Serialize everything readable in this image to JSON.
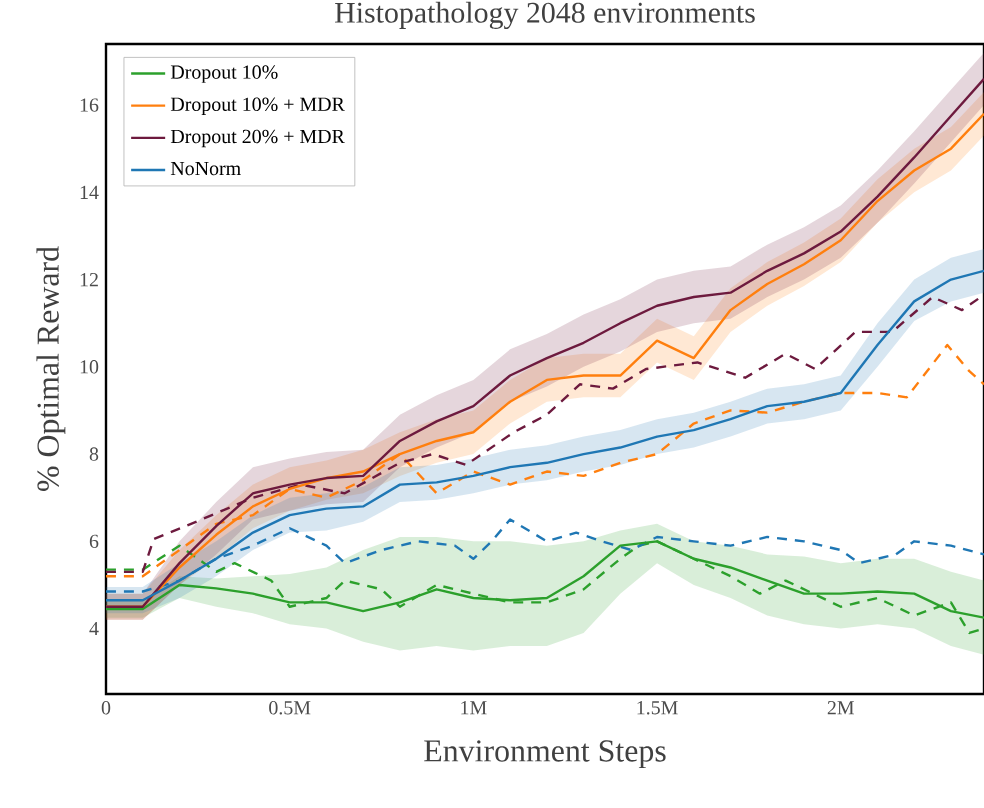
{
  "chart_data": {
    "type": "line",
    "title": "Histopathology 2048 environments",
    "xlabel": "Environment Steps",
    "ylabel": "% Optimal Reward",
    "xlim": [
      0,
      2.39
    ],
    "ylim": [
      2.5,
      17.4
    ],
    "xticks": [
      0,
      {
        "value": 0.5,
        "label": "0.5M"
      },
      {
        "value": 1,
        "label": "1M"
      },
      {
        "value": 1.5,
        "label": "1.5M"
      },
      {
        "value": 2,
        "label": "2M"
      }
    ],
    "yticks": [
      4,
      6,
      8,
      10,
      12,
      14,
      16
    ],
    "legend": "top left",
    "grid": false,
    "marker": "none",
    "x": [
      0,
      0.1,
      0.2,
      0.3,
      0.4,
      0.5,
      0.6,
      0.7,
      0.8,
      0.9,
      1.0,
      1.1,
      1.2,
      1.3,
      1.4,
      1.5,
      1.6,
      1.7,
      1.8,
      1.9,
      2.0,
      2.1,
      2.2,
      2.3,
      2.39
    ],
    "series": [
      {
        "name": "Dropout 10%",
        "color": "#2ca02c",
        "line_style": "solid",
        "values": [
          4.45,
          4.45,
          5.0,
          4.92,
          4.8,
          4.6,
          4.6,
          4.4,
          4.6,
          4.9,
          4.7,
          4.65,
          4.7,
          5.2,
          5.9,
          6.0,
          5.6,
          5.4,
          5.1,
          4.8,
          4.8,
          4.85,
          4.8,
          4.4,
          4.25
        ],
        "lower": [
          4.25,
          4.25,
          4.7,
          4.5,
          4.35,
          4.1,
          4.0,
          3.7,
          3.5,
          3.6,
          3.5,
          3.6,
          3.6,
          3.9,
          4.8,
          5.5,
          5.0,
          4.7,
          4.3,
          4.1,
          4.0,
          4.1,
          4.0,
          3.6,
          3.4
        ],
        "upper": [
          4.65,
          4.65,
          5.2,
          5.15,
          5.2,
          5.25,
          5.4,
          5.8,
          6.1,
          6.1,
          6.0,
          6.0,
          5.9,
          6.0,
          6.25,
          6.4,
          6.0,
          5.9,
          5.7,
          5.65,
          5.5,
          5.6,
          5.6,
          5.3,
          5.1
        ]
      },
      {
        "name": "Dropout 10% + MDR",
        "color": "#ff7f0e",
        "line_style": "solid",
        "values": [
          4.5,
          4.5,
          5.4,
          6.15,
          6.8,
          7.2,
          7.45,
          7.6,
          8.0,
          8.3,
          8.5,
          9.2,
          9.7,
          9.8,
          9.8,
          10.6,
          10.2,
          11.3,
          11.9,
          12.35,
          12.9,
          13.8,
          14.5,
          15.0,
          15.8
        ],
        "lower": [
          4.2,
          4.2,
          5.0,
          5.6,
          6.3,
          6.7,
          6.95,
          7.1,
          7.5,
          7.8,
          8.0,
          8.7,
          9.2,
          9.3,
          9.3,
          10.1,
          9.7,
          10.8,
          11.4,
          11.85,
          12.4,
          13.3,
          14.0,
          14.5,
          15.3
        ],
        "upper": [
          4.8,
          4.8,
          5.8,
          6.6,
          7.3,
          7.7,
          7.85,
          8.1,
          8.5,
          8.8,
          9.0,
          9.7,
          10.2,
          10.3,
          10.3,
          11.1,
          10.7,
          11.8,
          12.4,
          12.85,
          13.4,
          14.3,
          15.0,
          15.5,
          16.3
        ]
      },
      {
        "name": "Dropout 20% + MDR",
        "color": "#6d1a3e",
        "line_style": "solid",
        "values": [
          4.5,
          4.5,
          5.5,
          6.35,
          7.1,
          7.3,
          7.45,
          7.5,
          8.3,
          8.75,
          9.1,
          9.8,
          10.2,
          10.55,
          11.0,
          11.4,
          11.6,
          11.7,
          12.2,
          12.6,
          13.1,
          13.9,
          14.8,
          15.75,
          16.6
        ],
        "lower": [
          4.2,
          4.2,
          5.0,
          5.7,
          6.5,
          6.7,
          6.85,
          6.9,
          7.7,
          8.15,
          8.5,
          9.2,
          9.55,
          10.0,
          10.35,
          10.8,
          11.0,
          11.1,
          11.6,
          12.0,
          12.5,
          13.3,
          14.2,
          15.15,
          16.0
        ],
        "upper": [
          4.8,
          4.8,
          6.0,
          6.9,
          7.7,
          7.9,
          8.05,
          8.1,
          8.9,
          9.35,
          9.7,
          10.4,
          10.75,
          11.2,
          11.55,
          12.0,
          12.2,
          12.3,
          12.8,
          13.2,
          13.7,
          14.5,
          15.4,
          16.35,
          17.2
        ]
      },
      {
        "name": "NoNorm",
        "color": "#1f77b4",
        "line_style": "solid",
        "values": [
          4.65,
          4.65,
          5.1,
          5.6,
          6.2,
          6.6,
          6.75,
          6.8,
          7.3,
          7.35,
          7.5,
          7.7,
          7.8,
          8.0,
          8.15,
          8.4,
          8.55,
          8.8,
          9.1,
          9.2,
          9.4,
          10.5,
          11.5,
          12.0,
          12.2
        ],
        "lower": [
          4.35,
          4.35,
          4.7,
          5.2,
          5.8,
          6.2,
          6.25,
          6.45,
          6.9,
          6.95,
          7.1,
          7.3,
          7.4,
          7.6,
          7.75,
          8.0,
          8.15,
          8.4,
          8.7,
          8.8,
          9.0,
          10.0,
          11.05,
          11.5,
          11.7
        ],
        "upper": [
          4.95,
          4.95,
          5.5,
          6.0,
          6.6,
          7.0,
          7.1,
          7.25,
          7.7,
          7.75,
          7.9,
          8.1,
          8.2,
          8.4,
          8.55,
          8.8,
          8.95,
          9.2,
          9.5,
          9.6,
          9.8,
          11.0,
          12.0,
          12.5,
          12.7
        ]
      },
      {
        "color": "#2ca02c",
        "line_style": "dashed",
        "x": [
          0,
          0.1,
          0.2,
          0.3,
          0.35,
          0.45,
          0.5,
          0.6,
          0.65,
          0.75,
          0.8,
          0.9,
          1.0,
          1.1,
          1.2,
          1.3,
          1.4,
          1.45,
          1.5,
          1.6,
          1.7,
          1.78,
          1.85,
          2.0,
          2.1,
          2.2,
          2.3,
          2.35,
          2.39
        ],
        "values": [
          5.35,
          5.35,
          5.9,
          5.3,
          5.5,
          5.1,
          4.5,
          4.7,
          5.1,
          4.9,
          4.5,
          5.0,
          4.8,
          4.6,
          4.6,
          4.9,
          5.6,
          5.9,
          6.0,
          5.6,
          5.2,
          4.8,
          5.1,
          4.5,
          4.7,
          4.3,
          4.6,
          3.9,
          4.0
        ]
      },
      {
        "color": "#1f77b4",
        "line_style": "dashed",
        "x": [
          0,
          0.1,
          0.2,
          0.3,
          0.4,
          0.5,
          0.6,
          0.65,
          0.75,
          0.85,
          0.95,
          1.0,
          1.05,
          1.1,
          1.2,
          1.28,
          1.35,
          1.43,
          1.5,
          1.6,
          1.7,
          1.8,
          1.9,
          2.0,
          2.05,
          2.15,
          2.2,
          2.3,
          2.39
        ],
        "values": [
          4.85,
          4.85,
          5.1,
          5.6,
          5.9,
          6.3,
          5.9,
          5.5,
          5.8,
          6.0,
          5.9,
          5.6,
          6.0,
          6.5,
          6.0,
          6.2,
          6.0,
          5.8,
          6.1,
          6.0,
          5.9,
          6.1,
          6.0,
          5.8,
          5.5,
          5.7,
          6.0,
          5.9,
          5.7
        ]
      },
      {
        "color": "#ff7f0e",
        "line_style": "dashed",
        "x": [
          0,
          0.1,
          0.2,
          0.3,
          0.4,
          0.5,
          0.6,
          0.7,
          0.8,
          0.9,
          1.0,
          1.1,
          1.2,
          1.3,
          1.4,
          1.5,
          1.6,
          1.7,
          1.8,
          1.9,
          2.0,
          2.1,
          2.18,
          2.29,
          2.35,
          2.39
        ],
        "values": [
          5.2,
          5.2,
          5.8,
          6.4,
          6.6,
          7.2,
          7.0,
          7.4,
          8.0,
          7.1,
          7.6,
          7.3,
          7.6,
          7.5,
          7.8,
          8.0,
          8.7,
          9.0,
          8.95,
          9.2,
          9.4,
          9.4,
          9.3,
          10.5,
          9.9,
          9.6
        ]
      },
      {
        "color": "#6d1a3e",
        "line_style": "dashed",
        "x": [
          0,
          0.1,
          0.13,
          0.26,
          0.4,
          0.53,
          0.65,
          0.8,
          0.89,
          0.98,
          1.11,
          1.2,
          1.29,
          1.38,
          1.47,
          1.61,
          1.74,
          1.85,
          1.93,
          2.04,
          2.14,
          2.25,
          2.33,
          2.39
        ],
        "values": [
          5.3,
          5.3,
          6.05,
          6.5,
          7.0,
          7.3,
          7.1,
          7.8,
          8.0,
          7.75,
          8.5,
          8.9,
          9.6,
          9.5,
          9.95,
          10.1,
          9.75,
          10.3,
          9.95,
          10.8,
          10.8,
          11.6,
          11.3,
          11.65
        ]
      }
    ]
  }
}
